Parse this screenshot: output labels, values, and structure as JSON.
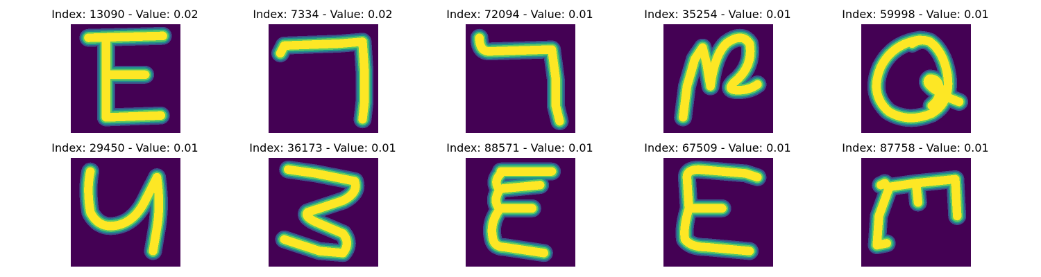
{
  "palette": {
    "background": "#440154",
    "stroke_core": "#fde725",
    "stroke_mid": "#5ec962",
    "stroke_edge": "#21918c",
    "stroke_faint": "#3b528b"
  },
  "panels": [
    {
      "title": "Index: 13090 - Value: 0.02",
      "glyph": "E"
    },
    {
      "title": "Index: 7334 - Value: 0.02",
      "glyph": "seven-hook"
    },
    {
      "title": "Index: 72094 - Value: 0.01",
      "glyph": "seven-hook-curl"
    },
    {
      "title": "Index: 35254 - Value: 0.01",
      "glyph": "N-curl"
    },
    {
      "title": "Index: 59998 - Value: 0.01",
      "glyph": "loop-Q"
    },
    {
      "title": "Index: 29450 - Value: 0.01",
      "glyph": "y-shape"
    },
    {
      "title": "Index: 36173 - Value: 0.01",
      "glyph": "three-zigzag"
    },
    {
      "title": "Index: 88571 - Value: 0.01",
      "glyph": "epsilon"
    },
    {
      "title": "Index: 67509 - Value: 0.01",
      "glyph": "E-round"
    },
    {
      "title": "Index: 87758 - Value: 0.01",
      "glyph": "m-shape"
    }
  ]
}
